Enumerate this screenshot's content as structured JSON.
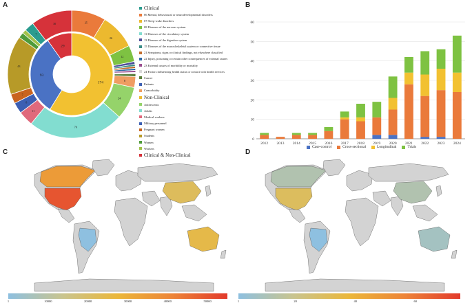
{
  "panels": {
    "a": "A",
    "b": "B",
    "c": "C",
    "d": "D"
  },
  "chart_data": [
    {
      "type": "pie",
      "subtype": "nested-donut",
      "title": "",
      "inner_ring": [
        {
          "label": "174",
          "value": 174,
          "color": "#f2c131"
        },
        {
          "label": "93",
          "value": 93,
          "color": "#4a72c4"
        },
        {
          "label": "29",
          "value": 29,
          "color": "#d6323a"
        }
      ],
      "outer_ring": [
        {
          "label": "25",
          "value": 25,
          "color": "#ea7a3b"
        },
        {
          "label": "26",
          "value": 26,
          "color": "#ecb92f"
        },
        {
          "label": "12",
          "value": 12,
          "color": "#7ec242"
        },
        {
          "label": "",
          "value": 2,
          "color": "#4e4e9a"
        },
        {
          "label": "",
          "value": 1.5,
          "color": "#3a8c86"
        },
        {
          "label": "",
          "value": 1.5,
          "color": "#c46f2f"
        },
        {
          "label": "",
          "value": 1.5,
          "color": "#2e6aa6"
        },
        {
          "label": "",
          "value": 1.5,
          "color": "#9a4d8f"
        },
        {
          "label": "",
          "value": 1,
          "color": "#d9d9d9"
        },
        {
          "label": "",
          "value": 2,
          "color": "#5a7f3c"
        },
        {
          "label": "8",
          "value": 8,
          "color": "#ef9d62"
        },
        {
          "label": "24",
          "value": 24,
          "color": "#95d36a"
        },
        {
          "label": "70",
          "value": 70,
          "color": "#82ddd0"
        },
        {
          "label": "11",
          "value": 11,
          "color": "#e0697c"
        },
        {
          "label": "8",
          "value": 8,
          "color": "#3c5fb3"
        },
        {
          "label": "7",
          "value": 7,
          "color": "#c9641f"
        },
        {
          "label": "43",
          "value": 43,
          "color": "#b79a28"
        },
        {
          "label": "",
          "value": 4,
          "color": "#4f9b3a"
        },
        {
          "label": "",
          "value": 3,
          "color": "#a1c24a"
        },
        {
          "label": "7",
          "value": 7,
          "color": "#2b9c8f"
        },
        {
          "label": "30",
          "value": 30,
          "color": "#d6323a"
        }
      ],
      "legend": [
        {
          "text": "Clinical",
          "color": "#2b9c8f",
          "header": true
        },
        {
          "text": "06 Mental, behavioural or neurodevelopmental disorders",
          "color": "#ea7a3b"
        },
        {
          "text": "07 Sleep-wake disorders",
          "color": "#ecb92f"
        },
        {
          "text": "08 Diseases of the nervous system",
          "color": "#7ec242"
        },
        {
          "text": "11 Diseases of the circulatory system",
          "color": "#82ddd0"
        },
        {
          "text": "13 Diseases of the digestive system",
          "color": "#4e4e9a"
        },
        {
          "text": "15 Diseases of the musculoskeletal system or connective tissue",
          "color": "#3a8c86"
        },
        {
          "text": "21 Symptoms, signs or clinical findings, not elsewhere classified",
          "color": "#c46f2f"
        },
        {
          "text": "22 Injury, poisoning or certain other consequences of external causes",
          "color": "#2e6aa6"
        },
        {
          "text": "23 External causes of morbidity or mortality",
          "color": "#9a4d8f"
        },
        {
          "text": "24 Factors influencing health status or contact with health services",
          "color": "#d9d9d9"
        },
        {
          "text": "Cancer",
          "color": "#5a7f3c"
        },
        {
          "text": "Patients",
          "color": "#3c5fb3"
        },
        {
          "text": "Comorbidity",
          "color": "#ef9d62"
        },
        {
          "text": "Non-Clinical",
          "color": "#ecb92f",
          "header": true
        },
        {
          "text": "Adolescents",
          "color": "#95d36a"
        },
        {
          "text": "Adults",
          "color": "#82ddd0"
        },
        {
          "text": "Medical workers",
          "color": "#e0697c"
        },
        {
          "text": "Military personnel",
          "color": "#3c5fb3"
        },
        {
          "text": "Pregnant women",
          "color": "#c9641f"
        },
        {
          "text": "Students",
          "color": "#b79a28"
        },
        {
          "text": "Women",
          "color": "#4f9b3a"
        },
        {
          "text": "Workers",
          "color": "#a1c24a"
        },
        {
          "text": "Clinical & Non-Clinical",
          "color": "#d6323a",
          "header": true
        }
      ]
    },
    {
      "type": "bar",
      "subtype": "stacked",
      "categories": [
        "2012",
        "2013",
        "2014",
        "2015",
        "2016",
        "2017",
        "2018",
        "2019",
        "2020",
        "2021",
        "2022",
        "2023",
        "2024"
      ],
      "series": [
        {
          "name": "Case-control",
          "color": "#4a72c4",
          "values": [
            0,
            0,
            0,
            0,
            0,
            0,
            0,
            2,
            2,
            0,
            1,
            1,
            0
          ]
        },
        {
          "name": "Cross-sectional",
          "color": "#ea7a3b",
          "values": [
            2,
            1,
            2,
            2,
            4,
            10,
            9,
            9,
            13,
            28,
            21,
            24,
            24
          ]
        },
        {
          "name": "Longitudinal",
          "color": "#f2c131",
          "values": [
            0,
            0,
            0,
            0,
            0,
            1,
            2,
            0,
            6,
            6,
            11,
            11,
            10
          ]
        },
        {
          "name": "Trials",
          "color": "#7ec242",
          "values": [
            1,
            0,
            1,
            1,
            2,
            3,
            7,
            8,
            11,
            8,
            12,
            10,
            19
          ]
        }
      ],
      "ylim": [
        0,
        60
      ],
      "yticks": [
        "0",
        "10",
        "20",
        "30",
        "40",
        "50",
        "60"
      ],
      "title": "",
      "xlabel": "",
      "ylabel": ""
    },
    {
      "type": "heatmap",
      "subtype": "choropleth",
      "colorbar_ticks": [
        "1",
        "10000",
        "20000",
        "30000",
        "40000",
        "50000"
      ],
      "colorbar_range": [
        1,
        55000
      ],
      "shaded_countries": [
        {
          "name": "United States",
          "value": 50000
        },
        {
          "name": "Canada",
          "value": 35000
        },
        {
          "name": "China",
          "value": 22000
        },
        {
          "name": "Australia",
          "value": 25000
        },
        {
          "name": "Brazil",
          "value": 1
        }
      ]
    },
    {
      "type": "heatmap",
      "subtype": "choropleth",
      "colorbar_ticks": [
        "1",
        "20",
        "40",
        "60"
      ],
      "colorbar_range": [
        1,
        75
      ],
      "shaded_countries": [
        {
          "name": "United States",
          "value": 30
        },
        {
          "name": "Canada",
          "value": 12
        },
        {
          "name": "China",
          "value": 12
        },
        {
          "name": "Australia",
          "value": 8
        },
        {
          "name": "Brazil",
          "value": 1
        }
      ]
    }
  ]
}
